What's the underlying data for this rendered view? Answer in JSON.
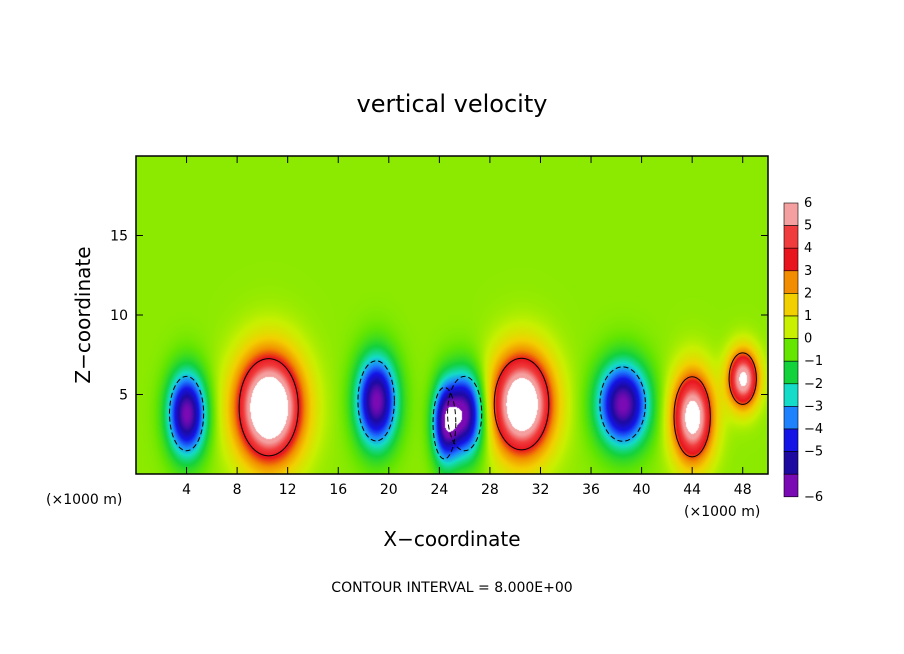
{
  "chart_data": {
    "type": "heatmap",
    "title": "vertical velocity",
    "xlabel": "X−coordinate",
    "ylabel": "Z−coordinate",
    "x_unit_label": "(×1000 m)",
    "x_unit_label_right": "(×1000 m)",
    "footer": "CONTOUR INTERVAL = 8.000E+00",
    "xlim": [
      0,
      50
    ],
    "ylim": [
      0,
      20
    ],
    "x_ticks": [
      4,
      8,
      12,
      16,
      20,
      24,
      28,
      32,
      36,
      40,
      44,
      48
    ],
    "x_tick_labels": [
      "4",
      "8",
      "12",
      "16",
      "20",
      "24",
      "28",
      "32",
      "36",
      "40",
      "44",
      "48"
    ],
    "y_ticks": [
      5,
      10,
      15
    ],
    "y_tick_labels": [
      "5",
      "10",
      "15"
    ],
    "colorbar": {
      "levels": [
        6,
        5,
        4,
        3,
        2,
        1,
        0,
        -1,
        -2,
        -3,
        -4,
        -5,
        -6
      ],
      "labels": [
        "6",
        "5",
        "4",
        "3",
        "2",
        "1",
        "0",
        "−1",
        "−2",
        "−3",
        "−4",
        "−5",
        "−6"
      ],
      "colors": [
        "#f4a0a0",
        "#f03c3c",
        "#e8141e",
        "#f28c00",
        "#f2d000",
        "#c8f000",
        "#64e600",
        "#14d23c",
        "#14dcc8",
        "#1e82ff",
        "#1414e6",
        "#1e0aa0",
        "#7a0ab4"
      ]
    },
    "background_value": 0.4,
    "cells": [
      {
        "x": 4.0,
        "z": 3.8,
        "amp": -6.5,
        "sx": 1.5,
        "sz": 2.6
      },
      {
        "x": 10.5,
        "z": 4.2,
        "amp": 8.5,
        "sx": 2.6,
        "sz": 3.4
      },
      {
        "x": 19.0,
        "z": 4.6,
        "amp": -6.5,
        "sx": 1.6,
        "sz": 2.8
      },
      {
        "x": 24.4,
        "z": 3.2,
        "amp": -5.0,
        "sx": 1.0,
        "sz": 2.5
      },
      {
        "x": 26.0,
        "z": 3.8,
        "amp": -6.5,
        "sx": 1.5,
        "sz": 2.6
      },
      {
        "x": 30.5,
        "z": 4.4,
        "amp": 8.0,
        "sx": 2.4,
        "sz": 3.2
      },
      {
        "x": 38.5,
        "z": 4.4,
        "amp": -6.5,
        "sx": 2.0,
        "sz": 2.6
      },
      {
        "x": 44.0,
        "z": 3.6,
        "amp": 7.0,
        "sx": 1.6,
        "sz": 2.8
      },
      {
        "x": 48.0,
        "z": 6.0,
        "amp": 6.5,
        "sx": 1.2,
        "sz": 1.8
      }
    ]
  }
}
